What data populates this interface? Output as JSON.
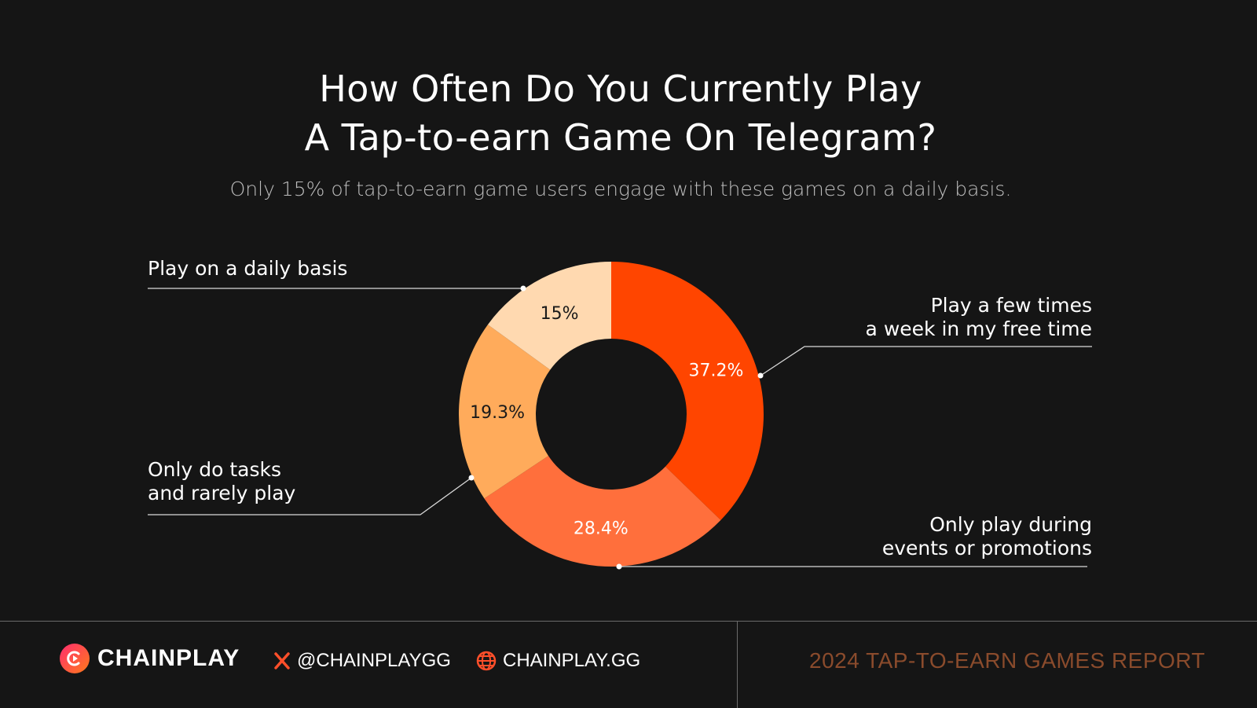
{
  "chart_data": {
    "type": "pie",
    "title_line1": "How Often Do You Currently Play",
    "title_line2": "A Tap-to-earn Game On Telegram?",
    "subtitle": "Only 15% of tap-to-earn game users engage with these games on a daily basis.",
    "series": [
      {
        "name": "Play a few times\na week in my free time",
        "value": 37.2,
        "value_label": "37.2%",
        "color": "#ff4500"
      },
      {
        "name": "Only play during\nevents or promotions",
        "value": 28.4,
        "value_label": "28.4%",
        "color": "#ff6f3c"
      },
      {
        "name": "Only do tasks\nand rarely play",
        "value": 19.3,
        "value_label": "19.3%",
        "color": "#ffab5b"
      },
      {
        "name": "Play on a daily basis",
        "value": 15,
        "value_label": "15%",
        "color": "#ffd9b0"
      }
    ]
  },
  "footer": {
    "brand": "CHAINPLAY",
    "twitter": "@CHAINPLAYGG",
    "website": "CHAINPLAY.GG",
    "report": "2024 TAP-TO-EARN GAMES REPORT",
    "accent": "#8a4b2c",
    "icons": [
      "chainplay-logo-icon",
      "x-logo-icon",
      "globe-icon"
    ]
  }
}
